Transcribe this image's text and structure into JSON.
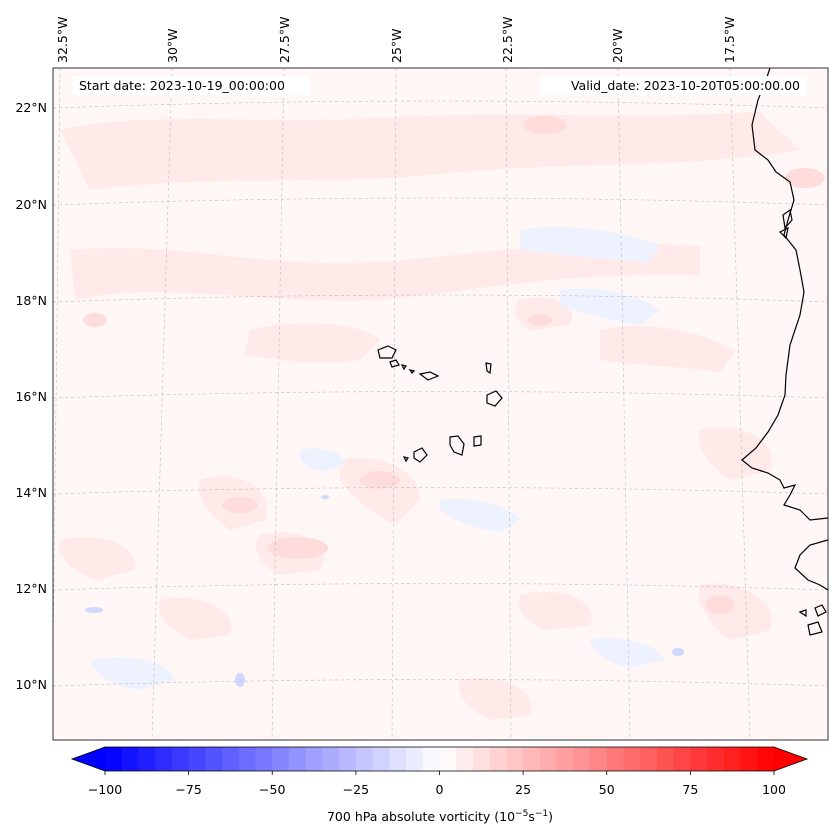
{
  "header": {
    "start_date": "Start date: 2023-10-19_00:00:00",
    "valid_date": "Valid_date: 2023-10-20T05:00:00.00"
  },
  "map": {
    "lon_labels": [
      "32.5°W",
      "30°W",
      "27.5°W",
      "25°W",
      "22.5°W",
      "20°W",
      "17.5°W"
    ],
    "lat_labels": [
      "22°N",
      "20°N",
      "18°N",
      "16°N",
      "14°N",
      "12°N",
      "10°N"
    ],
    "gridlines": true
  },
  "colorbar": {
    "label": "700 hPa absolute vorticity (10",
    "label_exp1": "−5",
    "label_mid": "s",
    "label_exp2": "−1",
    "label_end": ")",
    "ticks": [
      "−100",
      "−75",
      "−50",
      "−25",
      "0",
      "25",
      "50",
      "75",
      "100"
    ],
    "tick_values": [
      -100,
      -75,
      -50,
      -25,
      0,
      25,
      50,
      75,
      100
    ],
    "vmin": -100,
    "vmax": 100,
    "levels": 40,
    "colors": {
      "neg": "#0000ff",
      "zero": "#ffffff",
      "pos": "#ff0000"
    }
  }
}
